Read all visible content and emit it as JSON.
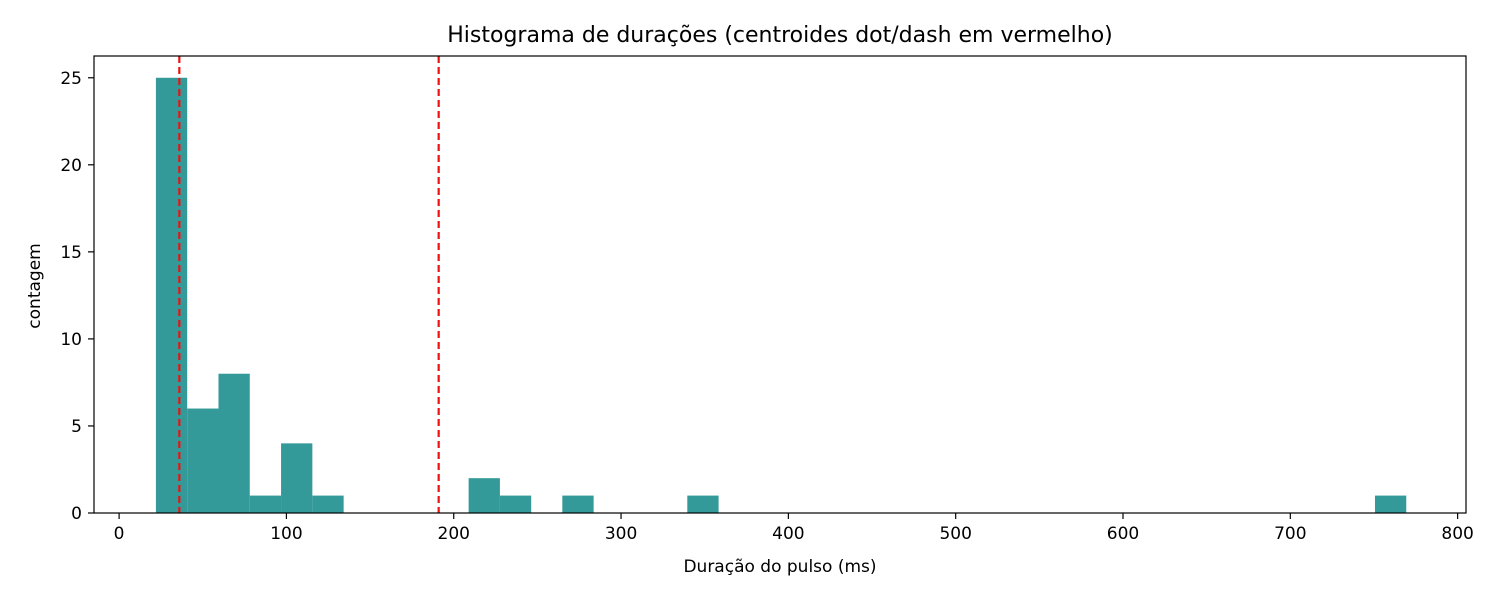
{
  "chart_data": {
    "type": "bar",
    "title": "Histograma de durações (centroides dot/dash em vermelho)",
    "xlabel": "Duração do pulso (ms)",
    "ylabel": "contagem",
    "xlim": [
      -15,
      805
    ],
    "ylim": [
      0,
      26.25
    ],
    "xticks": [
      0,
      100,
      200,
      300,
      400,
      500,
      600,
      700,
      800
    ],
    "yticks": [
      0,
      5,
      10,
      15,
      20,
      25
    ],
    "grid": false,
    "bar_color": "#339999",
    "bins": [
      {
        "x0": 22,
        "x1": 40.7,
        "count": 25
      },
      {
        "x0": 40.7,
        "x1": 59.4,
        "count": 6
      },
      {
        "x0": 59.4,
        "x1": 78.1,
        "count": 8
      },
      {
        "x0": 78.1,
        "x1": 96.8,
        "count": 1
      },
      {
        "x0": 96.8,
        "x1": 115.5,
        "count": 4
      },
      {
        "x0": 115.5,
        "x1": 134.2,
        "count": 1
      },
      {
        "x0": 208.9,
        "x1": 227.6,
        "count": 2
      },
      {
        "x0": 227.6,
        "x1": 246.3,
        "count": 1
      },
      {
        "x0": 264.9,
        "x1": 283.6,
        "count": 1
      },
      {
        "x0": 339.6,
        "x1": 358.3,
        "count": 1
      },
      {
        "x0": 750.6,
        "x1": 769.3,
        "count": 1
      }
    ],
    "vlines": [
      {
        "x": 36,
        "label": "dot",
        "color": "#ee1111",
        "style": "dashed"
      },
      {
        "x": 191,
        "label": "dash",
        "color": "#ee1111",
        "style": "dashed"
      }
    ]
  }
}
